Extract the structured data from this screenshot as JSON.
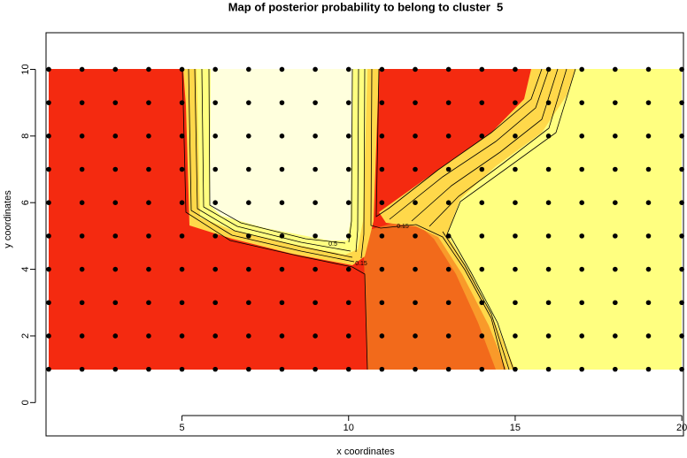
{
  "chart_data": {
    "type": "scatter",
    "title": "Map of posterior probability to belong to cluster  5",
    "x_label": "x coordinates",
    "y_label": "y coordinates",
    "grid_x": [
      1,
      2,
      3,
      4,
      5,
      6,
      7,
      8,
      9,
      10,
      11,
      12,
      13,
      14,
      15,
      16,
      17,
      18,
      19,
      20
    ],
    "grid_y": [
      1,
      2,
      3,
      4,
      5,
      6,
      7,
      8,
      9,
      10
    ],
    "xlim": [
      0.92,
      20.05
    ],
    "ylim": [
      -1,
      11.1
    ],
    "xticks": [
      5,
      10,
      15,
      20
    ],
    "yticks": [
      0,
      2,
      4,
      6,
      8,
      10
    ],
    "point_color": "#000000",
    "contour_labels": [
      0.5,
      0.15,
      0.15
    ]
  }
}
